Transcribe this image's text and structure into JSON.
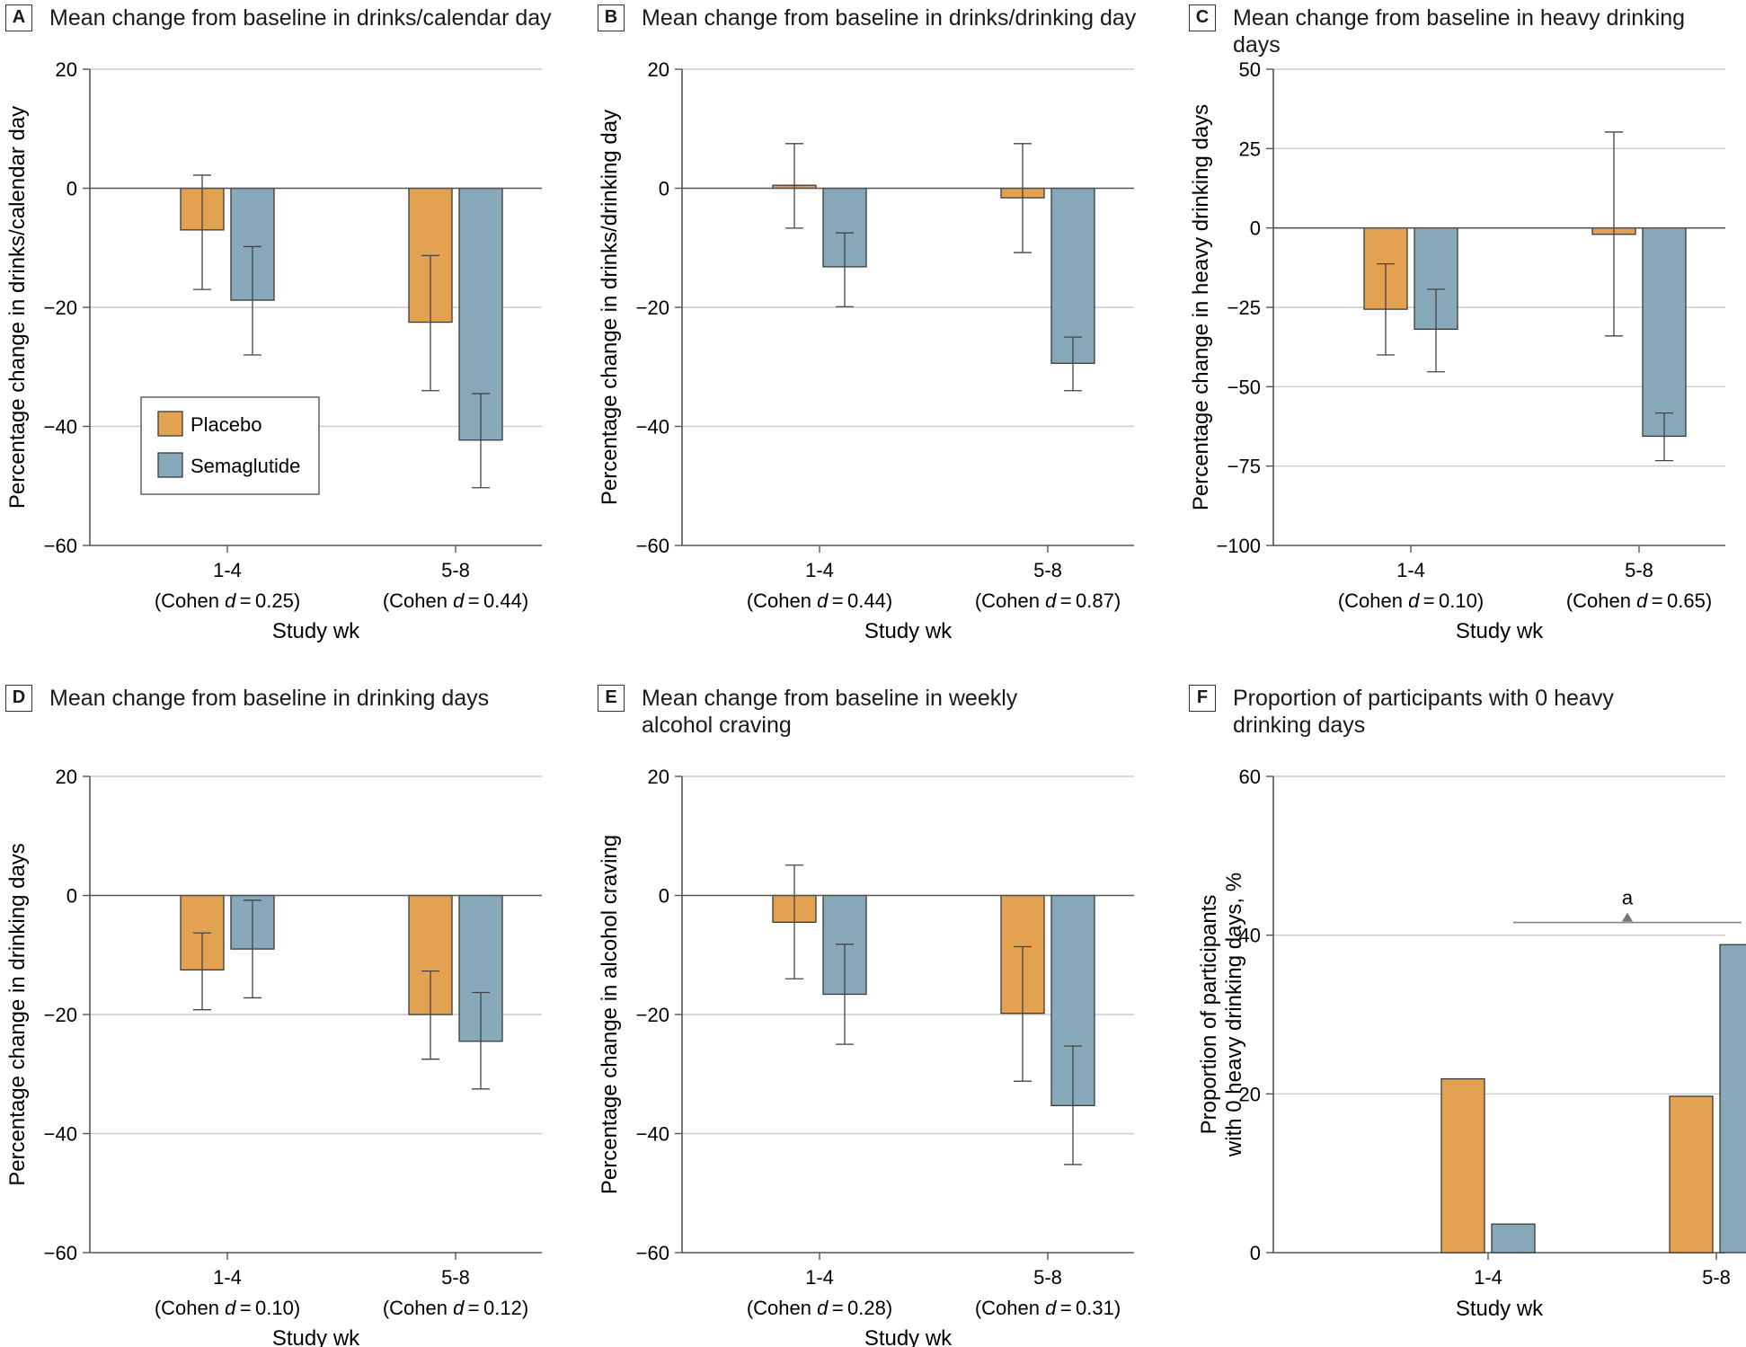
{
  "colors": {
    "placebo": "#E3A252",
    "semaglutide": "#87A9BA",
    "axis": "#555555",
    "grid": "#cccccc",
    "error": "#444444"
  },
  "legend": {
    "placebo": "Placebo",
    "semaglutide": "Semaglutide"
  },
  "chart_data": [
    {
      "id": "A",
      "type": "bar",
      "letter": "A",
      "title": "Mean change from baseline in drinks/calendar day",
      "ylabel": "Percentage change in drinks/calendar day",
      "xlabel": "Study wk",
      "ylim": [
        -60,
        20
      ],
      "yticks": [
        20,
        0,
        -20,
        -40,
        -60
      ],
      "tick_labels": [
        "20",
        "0",
        "−20",
        "−40",
        "−60"
      ],
      "categories": [
        "1-4",
        "5-8"
      ],
      "effect_sizes": [
        "0.25",
        "0.44"
      ],
      "show_legend": true,
      "series": [
        {
          "name": "Placebo",
          "values": [
            -7,
            -22.5
          ],
          "err_low": [
            -17,
            -34
          ],
          "err_high": [
            2.2,
            -11.3
          ]
        },
        {
          "name": "Semaglutide",
          "values": [
            -18.8,
            -42.3
          ],
          "err_low": [
            -28,
            -50.3
          ],
          "err_high": [
            -9.8,
            -34.5
          ]
        }
      ]
    },
    {
      "id": "B",
      "type": "bar",
      "letter": "B",
      "title": "Mean change from baseline in drinks/drinking day",
      "ylabel": "Percentage change in drinks/drinking day",
      "xlabel": "Study wk",
      "ylim": [
        -60,
        20
      ],
      "yticks": [
        20,
        0,
        -20,
        -40,
        -60
      ],
      "tick_labels": [
        "20",
        "0",
        "−20",
        "−40",
        "−60"
      ],
      "categories": [
        "1-4",
        "5-8"
      ],
      "effect_sizes": [
        "0.44",
        "0.87"
      ],
      "show_legend": false,
      "series": [
        {
          "name": "Placebo",
          "values": [
            0.5,
            -1.6
          ],
          "err_low": [
            -6.7,
            -10.8
          ],
          "err_high": [
            7.5,
            7.5
          ]
        },
        {
          "name": "Semaglutide",
          "values": [
            -13.2,
            -29.4
          ],
          "err_low": [
            -19.9,
            -34
          ],
          "err_high": [
            -7.5,
            -25
          ]
        }
      ]
    },
    {
      "id": "C",
      "type": "bar",
      "letter": "C",
      "title": "Mean change from baseline in heavy drinking days",
      "ylabel": "Percentage change in heavy drinking days",
      "xlabel": "Study wk",
      "ylim": [
        -100,
        50
      ],
      "yticks": [
        50,
        25,
        0,
        -25,
        -50,
        -75,
        -100
      ],
      "tick_labels": [
        "50",
        "25",
        "0",
        "−25",
        "−50",
        "−75",
        "−100"
      ],
      "categories": [
        "1-4",
        "5-8"
      ],
      "effect_sizes": [
        "0.10",
        "0.65"
      ],
      "show_legend": false,
      "series": [
        {
          "name": "Placebo",
          "values": [
            -25.6,
            -2
          ],
          "err_low": [
            -40,
            -34
          ],
          "err_high": [
            -11.3,
            30.2
          ]
        },
        {
          "name": "Semaglutide",
          "values": [
            -31.9,
            -65.6
          ],
          "err_low": [
            -45.3,
            -73.3
          ],
          "err_high": [
            -19.3,
            -58.3
          ]
        }
      ]
    },
    {
      "id": "D",
      "type": "bar",
      "letter": "D",
      "title": "Mean change from baseline in drinking days",
      "ylabel": "Percentage change in drinking days",
      "xlabel": "Study wk",
      "ylim": [
        -60,
        20
      ],
      "yticks": [
        20,
        0,
        -20,
        -40,
        -60
      ],
      "tick_labels": [
        "20",
        "0",
        "−20",
        "−40",
        "−60"
      ],
      "categories": [
        "1-4",
        "5-8"
      ],
      "effect_sizes": [
        "0.10",
        "0.12"
      ],
      "show_legend": false,
      "series": [
        {
          "name": "Placebo",
          "values": [
            -12.5,
            -20
          ],
          "err_low": [
            -19.2,
            -27.5
          ],
          "err_high": [
            -6.3,
            -12.7
          ]
        },
        {
          "name": "Semaglutide",
          "values": [
            -9,
            -24.5
          ],
          "err_low": [
            -17.2,
            -32.5
          ],
          "err_high": [
            -0.8,
            -16.3
          ]
        }
      ]
    },
    {
      "id": "E",
      "type": "bar",
      "letter": "E",
      "title": "Mean change from baseline in weekly alcohol craving",
      "ylabel": "Percentage change in alcohol craving",
      "xlabel": "Study wk",
      "ylim": [
        -60,
        20
      ],
      "yticks": [
        20,
        0,
        -20,
        -40,
        -60
      ],
      "tick_labels": [
        "20",
        "0",
        "−20",
        "−40",
        "−60"
      ],
      "categories": [
        "1-4",
        "5-8"
      ],
      "effect_sizes": [
        "0.28",
        "0.31"
      ],
      "show_legend": false,
      "series": [
        {
          "name": "Placebo",
          "values": [
            -4.5,
            -19.8
          ],
          "err_low": [
            -14,
            -31.2
          ],
          "err_high": [
            5.1,
            -8.6
          ]
        },
        {
          "name": "Semaglutide",
          "values": [
            -16.6,
            -35.3
          ],
          "err_low": [
            -25,
            -45.2
          ],
          "err_high": [
            -8.2,
            -25.3
          ]
        }
      ]
    },
    {
      "id": "F",
      "type": "bar",
      "letter": "F",
      "title": "Proportion of participants with 0 heavy drinking days",
      "ylabel": "Proportion of participants with 0 heavy drinking days, %",
      "ylabel_lines": [
        "Proportion of participants",
        "with 0 heavy drinking days, %"
      ],
      "xlabel": "Study wk",
      "ylim": [
        0,
        60
      ],
      "yticks": [
        60,
        40,
        20,
        0
      ],
      "tick_labels": [
        "60",
        "40",
        "20",
        "0"
      ],
      "categories": [
        "1-4",
        "5-8"
      ],
      "effect_sizes": [],
      "show_legend": false,
      "series": [
        {
          "name": "Placebo",
          "values": [
            21.9,
            19.7
          ]
        },
        {
          "name": "Semaglutide",
          "values": [
            3.6,
            38.8
          ]
        }
      ],
      "annotation": {
        "text": "a",
        "y": 41.6,
        "from": "1-4 semaglutide",
        "to": "5-8 semaglutide"
      }
    }
  ]
}
